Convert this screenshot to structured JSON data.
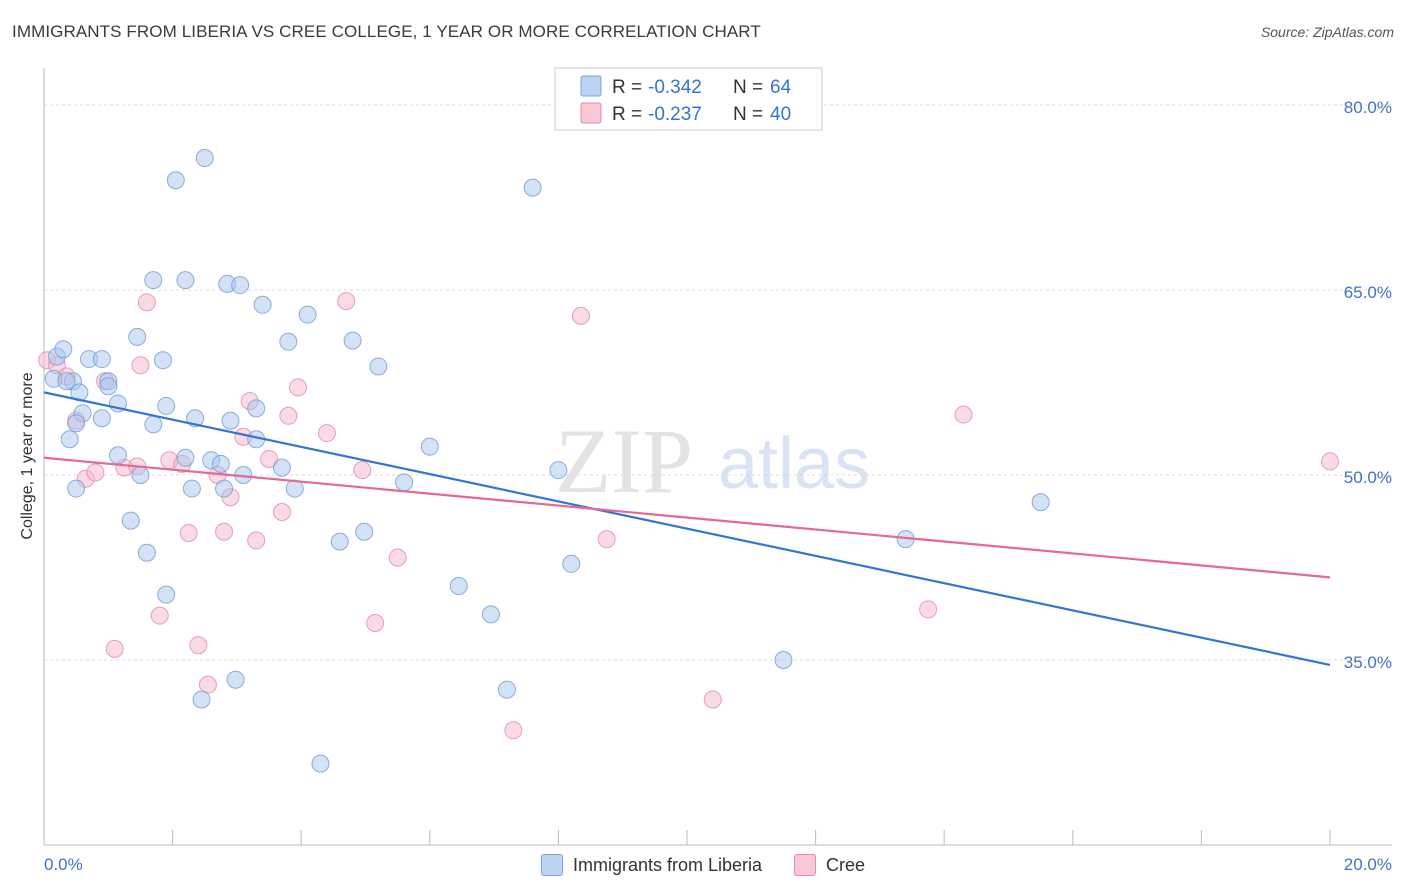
{
  "header": {
    "title": "IMMIGRANTS FROM LIBERIA VS CREE COLLEGE, 1 YEAR OR MORE CORRELATION CHART",
    "source": "Source: ZipAtlas.com"
  },
  "watermark": {
    "zip": "ZIP",
    "atlas": "atlas"
  },
  "colors": {
    "blue_fill": "#a9c6ee",
    "blue_stroke": "#6f9bd8",
    "blue_line": "#3474d4",
    "pink_fill": "#f5b5c8",
    "pink_stroke": "#e48aa6",
    "pink_line": "#e36a93",
    "tick_text": "#4472c4",
    "grid": "#dddddd"
  },
  "legend": {
    "rows": [
      {
        "r_label": "R = ",
        "r_value": "-0.342",
        "n_label": "N = ",
        "n_value": "64",
        "series": "blue"
      },
      {
        "r_label": "R = ",
        "r_value": "-0.237",
        "n_label": "N = ",
        "n_value": "40",
        "series": "pink"
      }
    ]
  },
  "bottom_legend": {
    "series1": "Immigrants from Liberia",
    "series2": "Cree"
  },
  "chart_data": {
    "type": "scatter",
    "title": "IMMIGRANTS FROM LIBERIA VS CREE COLLEGE, 1 YEAR OR MORE CORRELATION CHART",
    "xlabel": "",
    "ylabel": "College, 1 year or more",
    "xlim": [
      0,
      20
    ],
    "ylim": [
      20,
      83
    ],
    "x_tick_labels": [
      {
        "value": 0,
        "label": "0.0%"
      },
      {
        "value": 20,
        "label": "20.0%"
      }
    ],
    "y_tick_labels": [
      {
        "value": 80,
        "label": "80.0%"
      },
      {
        "value": 65,
        "label": "65.0%"
      },
      {
        "value": 50,
        "label": "50.0%"
      },
      {
        "value": 35,
        "label": "35.0%"
      }
    ],
    "x_minor_ticks": [
      2,
      4,
      6,
      8,
      10,
      12,
      14,
      16,
      18,
      20
    ],
    "series": [
      {
        "name": "Immigrants from Liberia",
        "color": "blue",
        "r": -0.342,
        "n": 64,
        "trend": {
          "x0": 0,
          "y0": 56.7,
          "x1": 20,
          "y1": 34.6
        },
        "points": [
          [
            0.2,
            59.6
          ],
          [
            0.3,
            60.2
          ],
          [
            0.15,
            57.8
          ],
          [
            0.45,
            57.6
          ],
          [
            0.7,
            59.4
          ],
          [
            0.9,
            59.4
          ],
          [
            0.55,
            56.7
          ],
          [
            1.0,
            57.6
          ],
          [
            0.6,
            55.0
          ],
          [
            0.4,
            52.9
          ],
          [
            0.5,
            48.9
          ],
          [
            1.15,
            55.8
          ],
          [
            1.45,
            61.2
          ],
          [
            1.85,
            59.3
          ],
          [
            1.7,
            65.8
          ],
          [
            2.2,
            65.8
          ],
          [
            2.85,
            65.5
          ],
          [
            3.05,
            65.4
          ],
          [
            2.05,
            73.9
          ],
          [
            2.5,
            75.7
          ],
          [
            3.4,
            63.8
          ],
          [
            4.1,
            63.0
          ],
          [
            3.8,
            60.8
          ],
          [
            4.8,
            60.9
          ],
          [
            5.2,
            58.8
          ],
          [
            1.9,
            55.6
          ],
          [
            2.35,
            54.6
          ],
          [
            2.9,
            54.4
          ],
          [
            3.3,
            55.4
          ],
          [
            1.15,
            51.6
          ],
          [
            1.5,
            50.0
          ],
          [
            1.7,
            54.1
          ],
          [
            2.2,
            51.4
          ],
          [
            2.3,
            48.9
          ],
          [
            2.6,
            51.2
          ],
          [
            2.75,
            50.9
          ],
          [
            2.8,
            48.9
          ],
          [
            3.1,
            50.0
          ],
          [
            3.3,
            52.9
          ],
          [
            3.7,
            50.6
          ],
          [
            3.9,
            48.9
          ],
          [
            5.6,
            49.4
          ],
          [
            6.0,
            52.3
          ],
          [
            1.35,
            46.3
          ],
          [
            1.6,
            43.7
          ],
          [
            1.9,
            40.3
          ],
          [
            2.45,
            31.8
          ],
          [
            2.98,
            33.4
          ],
          [
            4.3,
            26.6
          ],
          [
            4.6,
            44.6
          ],
          [
            4.98,
            45.4
          ],
          [
            6.45,
            41.0
          ],
          [
            6.95,
            38.7
          ],
          [
            7.2,
            32.6
          ],
          [
            7.6,
            73.3
          ],
          [
            8.0,
            50.4
          ],
          [
            8.2,
            42.8
          ],
          [
            11.5,
            35.0
          ],
          [
            13.4,
            44.8
          ],
          [
            15.5,
            47.8
          ],
          [
            0.5,
            54.2
          ],
          [
            0.35,
            57.6
          ],
          [
            1.0,
            57.2
          ],
          [
            0.9,
            54.6
          ]
        ]
      },
      {
        "name": "Cree",
        "color": "pink",
        "r": -0.237,
        "n": 40,
        "trend": {
          "x0": 0,
          "y0": 51.4,
          "x1": 20,
          "y1": 41.7
        },
        "points": [
          [
            0.05,
            59.3
          ],
          [
            0.2,
            58.9
          ],
          [
            0.35,
            58.0
          ],
          [
            0.5,
            54.4
          ],
          [
            0.65,
            49.7
          ],
          [
            0.8,
            50.2
          ],
          [
            0.95,
            57.6
          ],
          [
            1.25,
            50.6
          ],
          [
            1.45,
            50.7
          ],
          [
            1.5,
            58.9
          ],
          [
            1.6,
            64.0
          ],
          [
            1.8,
            38.6
          ],
          [
            1.95,
            51.2
          ],
          [
            2.15,
            50.9
          ],
          [
            2.25,
            45.3
          ],
          [
            2.4,
            36.2
          ],
          [
            2.55,
            33.0
          ],
          [
            2.7,
            50.0
          ],
          [
            2.8,
            45.4
          ],
          [
            2.9,
            48.2
          ],
          [
            3.1,
            53.1
          ],
          [
            3.2,
            56.0
          ],
          [
            3.3,
            44.7
          ],
          [
            3.5,
            51.3
          ],
          [
            3.7,
            47.0
          ],
          [
            3.8,
            54.8
          ],
          [
            3.95,
            57.1
          ],
          [
            4.4,
            53.4
          ],
          [
            4.7,
            64.1
          ],
          [
            4.95,
            50.4
          ],
          [
            5.15,
            38.0
          ],
          [
            5.5,
            43.3
          ],
          [
            7.3,
            29.3
          ],
          [
            8.35,
            62.9
          ],
          [
            8.75,
            44.8
          ],
          [
            10.4,
            31.8
          ],
          [
            13.75,
            39.1
          ],
          [
            14.3,
            54.9
          ],
          [
            20.0,
            51.1
          ],
          [
            1.1,
            35.9
          ]
        ]
      }
    ]
  }
}
